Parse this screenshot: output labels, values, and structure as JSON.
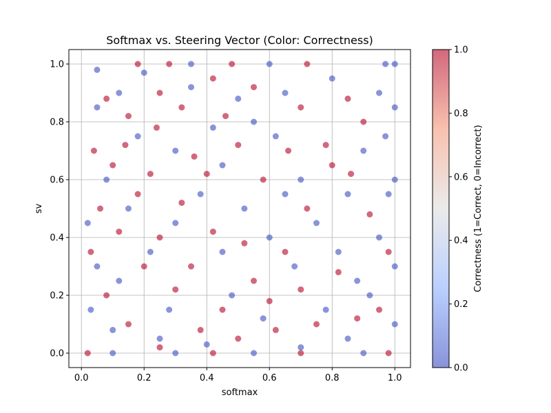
{
  "chart_data": {
    "type": "scatter",
    "title": "Softmax vs. Steering Vector (Color: Correctness)",
    "xlabel": "softmax",
    "ylabel": "sv",
    "xlim": [
      -0.04,
      1.05
    ],
    "ylim": [
      -0.05,
      1.05
    ],
    "xticks": [
      0.0,
      0.2,
      0.4,
      0.6,
      0.8,
      1.0
    ],
    "xtick_labels": [
      "0.0",
      "0.2",
      "0.4",
      "0.6",
      "0.8",
      "1.0"
    ],
    "yticks": [
      0.0,
      0.2,
      0.4,
      0.6,
      0.8,
      1.0
    ],
    "ytick_labels": [
      "0.0",
      "0.2",
      "0.4",
      "0.6",
      "0.8",
      "1.0"
    ],
    "grid": true,
    "colorbar": {
      "label": "Correctness (1=Correct, 0=Incorrect)",
      "range": [
        0.0,
        1.0
      ],
      "ticks": [
        0.0,
        0.2,
        0.4,
        0.6,
        0.8,
        1.0
      ],
      "tick_labels": [
        "0.0",
        "0.2",
        "0.4",
        "0.6",
        "0.8",
        "1.0"
      ],
      "colormap": "coolwarm",
      "low_color": "#3b4cc0",
      "mid_color": "#dddddd",
      "high_color": "#b40426"
    },
    "marker_alpha": 0.6,
    "series": [
      {
        "color_value": 0,
        "color": "#3b4cc0",
        "points": [
          [
            0.05,
            0.85
          ],
          [
            0.12,
            0.9
          ],
          [
            0.2,
            0.97
          ],
          [
            0.35,
            0.92
          ],
          [
            0.5,
            0.88
          ],
          [
            0.65,
            0.9
          ],
          [
            0.8,
            0.95
          ],
          [
            0.95,
            0.9
          ],
          [
            1.0,
            0.85
          ],
          [
            1.0,
            0.6
          ],
          [
            0.97,
            0.75
          ],
          [
            0.9,
            0.7
          ],
          [
            0.85,
            0.55
          ],
          [
            0.95,
            0.4
          ],
          [
            1.0,
            0.3
          ],
          [
            0.92,
            0.2
          ],
          [
            1.0,
            0.1
          ],
          [
            0.85,
            0.05
          ],
          [
            0.7,
            0.02
          ],
          [
            0.55,
            0.0
          ],
          [
            0.4,
            0.03
          ],
          [
            0.25,
            0.05
          ],
          [
            0.1,
            0.08
          ],
          [
            0.03,
            0.15
          ],
          [
            0.05,
            0.3
          ],
          [
            0.02,
            0.45
          ],
          [
            0.08,
            0.6
          ],
          [
            0.15,
            0.5
          ],
          [
            0.22,
            0.35
          ],
          [
            0.3,
            0.45
          ],
          [
            0.38,
            0.55
          ],
          [
            0.45,
            0.65
          ],
          [
            0.52,
            0.5
          ],
          [
            0.6,
            0.4
          ],
          [
            0.68,
            0.3
          ],
          [
            0.75,
            0.45
          ],
          [
            0.82,
            0.35
          ],
          [
            0.7,
            0.6
          ],
          [
            0.62,
            0.75
          ],
          [
            0.55,
            0.8
          ],
          [
            0.42,
            0.78
          ],
          [
            0.3,
            0.7
          ],
          [
            0.18,
            0.75
          ],
          [
            0.12,
            0.25
          ],
          [
            0.28,
            0.15
          ],
          [
            0.48,
            0.2
          ],
          [
            0.58,
            0.12
          ],
          [
            0.78,
            0.15
          ],
          [
            0.88,
            0.25
          ],
          [
            0.98,
            0.55
          ],
          [
            1.0,
            1.0
          ],
          [
            0.97,
            1.0
          ],
          [
            0.35,
            1.0
          ],
          [
            0.6,
            1.0
          ],
          [
            0.1,
            0.0
          ],
          [
            0.3,
            0.0
          ],
          [
            0.9,
            0.0
          ],
          [
            0.05,
            0.98
          ],
          [
            0.45,
            0.35
          ],
          [
            0.65,
            0.55
          ]
        ]
      },
      {
        "color_value": 1,
        "color": "#b40426",
        "points": [
          [
            0.08,
            0.88
          ],
          [
            0.15,
            0.82
          ],
          [
            0.25,
            0.9
          ],
          [
            0.32,
            0.85
          ],
          [
            0.42,
            0.95
          ],
          [
            0.55,
            0.92
          ],
          [
            0.7,
            0.85
          ],
          [
            0.85,
            0.88
          ],
          [
            0.9,
            0.8
          ],
          [
            0.8,
            0.65
          ],
          [
            0.72,
            0.5
          ],
          [
            0.65,
            0.35
          ],
          [
            0.55,
            0.25
          ],
          [
            0.45,
            0.15
          ],
          [
            0.35,
            0.3
          ],
          [
            0.25,
            0.4
          ],
          [
            0.18,
            0.55
          ],
          [
            0.1,
            0.65
          ],
          [
            0.04,
            0.7
          ],
          [
            0.06,
            0.5
          ],
          [
            0.03,
            0.35
          ],
          [
            0.08,
            0.2
          ],
          [
            0.15,
            0.1
          ],
          [
            0.25,
            0.02
          ],
          [
            0.38,
            0.08
          ],
          [
            0.5,
            0.05
          ],
          [
            0.62,
            0.08
          ],
          [
            0.75,
            0.1
          ],
          [
            0.88,
            0.12
          ],
          [
            0.95,
            0.15
          ],
          [
            0.98,
            0.35
          ],
          [
            0.92,
            0.48
          ],
          [
            0.86,
            0.62
          ],
          [
            0.78,
            0.72
          ],
          [
            0.66,
            0.7
          ],
          [
            0.58,
            0.6
          ],
          [
            0.5,
            0.72
          ],
          [
            0.4,
            0.62
          ],
          [
            0.32,
            0.52
          ],
          [
            0.22,
            0.62
          ],
          [
            0.14,
            0.72
          ],
          [
            0.2,
            0.3
          ],
          [
            0.3,
            0.22
          ],
          [
            0.42,
            0.42
          ],
          [
            0.52,
            0.38
          ],
          [
            0.6,
            0.18
          ],
          [
            0.7,
            0.22
          ],
          [
            0.82,
            0.28
          ],
          [
            0.24,
            0.78
          ],
          [
            0.46,
            0.82
          ],
          [
            0.18,
            1.0
          ],
          [
            0.28,
            1.0
          ],
          [
            0.48,
            1.0
          ],
          [
            0.72,
            1.0
          ],
          [
            0.02,
            0.0
          ],
          [
            0.42,
            0.0
          ],
          [
            0.7,
            0.0
          ],
          [
            0.98,
            0.0
          ],
          [
            0.36,
            0.68
          ],
          [
            0.12,
            0.42
          ]
        ]
      }
    ]
  }
}
